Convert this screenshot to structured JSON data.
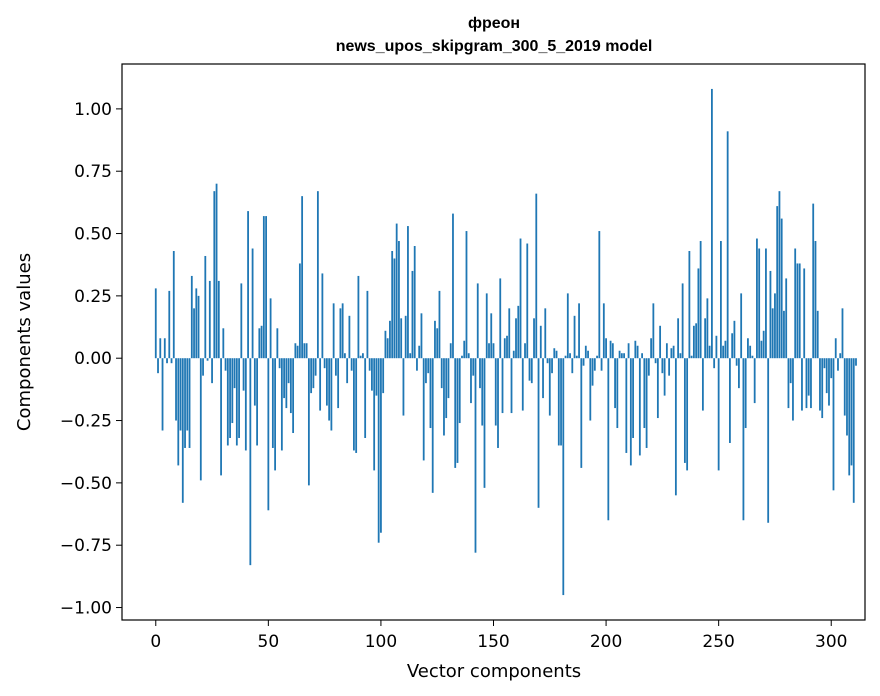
{
  "chart_data": {
    "type": "bar",
    "title": "фреон",
    "subtitle": "news_upos_skipgram_300_5_2019 model",
    "xlabel": "Vector components",
    "ylabel": "Components values",
    "xlim": [
      -15,
      315
    ],
    "ylim": [
      -1.05,
      1.18
    ],
    "xticks": [
      0,
      50,
      100,
      150,
      200,
      250,
      300
    ],
    "xtick_labels": [
      "0",
      "50",
      "100",
      "150",
      "200",
      "250",
      "300"
    ],
    "yticks": [
      -1.0,
      -0.75,
      -0.5,
      -0.25,
      0.0,
      0.25,
      0.5,
      0.75,
      1.0
    ],
    "ytick_labels": [
      "−1.00",
      "−0.75",
      "−0.50",
      "−0.25",
      "0.00",
      "0.25",
      "0.50",
      "0.75",
      "1.00"
    ],
    "bar_color": "#1f77b4",
    "values": [
      0.28,
      -0.06,
      0.08,
      -0.29,
      0.08,
      -0.02,
      0.27,
      -0.02,
      0.43,
      -0.25,
      -0.43,
      -0.29,
      -0.58,
      -0.36,
      -0.29,
      -0.36,
      0.33,
      0.2,
      0.28,
      0.25,
      -0.49,
      -0.07,
      0.41,
      -0.01,
      0.31,
      -0.1,
      0.67,
      0.7,
      0.31,
      -0.47,
      0.12,
      -0.05,
      -0.35,
      -0.32,
      -0.26,
      -0.12,
      -0.35,
      -0.32,
      0.3,
      -0.13,
      -0.37,
      0.59,
      -0.83,
      0.44,
      -0.19,
      -0.35,
      0.12,
      0.13,
      0.57,
      0.57,
      -0.61,
      0.24,
      -0.36,
      -0.45,
      0.12,
      -0.04,
      -0.37,
      -0.16,
      -0.2,
      -0.1,
      -0.22,
      -0.3,
      0.06,
      0.05,
      0.38,
      0.65,
      0.06,
      0.06,
      -0.51,
      -0.14,
      -0.12,
      -0.07,
      0.67,
      -0.21,
      0.34,
      -0.04,
      -0.19,
      -0.25,
      -0.29,
      0.22,
      -0.07,
      -0.2,
      0.2,
      0.22,
      0.02,
      -0.1,
      0.17,
      -0.05,
      -0.37,
      -0.38,
      0.33,
      0.01,
      0.02,
      -0.32,
      0.27,
      -0.05,
      -0.13,
      -0.45,
      -0.15,
      -0.74,
      -0.7,
      -0.14,
      0.11,
      0.08,
      0.15,
      0.43,
      0.4,
      0.54,
      0.47,
      0.16,
      -0.23,
      0.17,
      0.53,
      0.02,
      0.35,
      0.45,
      -0.05,
      0.05,
      0.18,
      -0.41,
      -0.1,
      -0.06,
      -0.28,
      -0.54,
      0.15,
      0.12,
      0.27,
      -0.12,
      -0.31,
      -0.24,
      -0.16,
      0.06,
      0.58,
      -0.44,
      -0.42,
      -0.26,
      0.01,
      0.07,
      0.51,
      0.02,
      -0.18,
      -0.07,
      -0.78,
      0.3,
      -0.12,
      -0.27,
      -0.52,
      0.26,
      0.06,
      0.18,
      0.06,
      -0.27,
      -0.36,
      0.32,
      -0.22,
      0.08,
      0.09,
      0.2,
      -0.22,
      0.03,
      0.16,
      0.21,
      0.48,
      -0.21,
      0.06,
      0.46,
      -0.09,
      -0.1,
      0.16,
      0.66,
      -0.6,
      0.13,
      -0.16,
      0.2,
      -0.02,
      -0.23,
      -0.06,
      0.04,
      0.03,
      -0.35,
      -0.35,
      -0.95,
      0.01,
      0.26,
      0.02,
      -0.06,
      0.17,
      0.01,
      0.22,
      -0.44,
      -0.03,
      0.05,
      0.03,
      -0.25,
      -0.11,
      -0.05,
      0.01,
      0.51,
      -0.05,
      0.22,
      0.08,
      -0.65,
      0.07,
      0.06,
      -0.2,
      -0.28,
      0.03,
      0.02,
      0.02,
      -0.38,
      0.06,
      -0.43,
      -0.32,
      0.07,
      0.05,
      -0.39,
      0.02,
      -0.28,
      -0.36,
      -0.07,
      0.08,
      0.22,
      -0.02,
      -0.24,
      0.13,
      -0.06,
      -0.15,
      0.06,
      -0.07,
      0.04,
      0.05,
      -0.55,
      0.16,
      0.02,
      0.3,
      -0.42,
      -0.45,
      0.43,
      0.01,
      0.13,
      0.14,
      0.36,
      0.47,
      -0.21,
      0.16,
      0.24,
      0.05,
      1.08,
      -0.04,
      0.09,
      -0.45,
      0.47,
      0.05,
      0.07,
      0.91,
      -0.34,
      0.1,
      0.15,
      -0.03,
      -0.12,
      0.26,
      -0.65,
      -0.28,
      0.08,
      0.05,
      0.01,
      -0.18,
      0.48,
      0.44,
      0.07,
      0.11,
      0.44,
      -0.66,
      0.35,
      0.2,
      0.26,
      0.61,
      0.67,
      0.56,
      0.19,
      0.32,
      -0.2,
      -0.1,
      -0.25,
      0.44,
      0.38,
      0.38,
      -0.21,
      0.36,
      -0.2,
      -0.15,
      -0.2,
      0.62,
      0.47,
      0.19,
      -0.21,
      -0.24,
      -0.04,
      -0.14,
      -0.19,
      -0.08,
      -0.53,
      0.08,
      -0.05,
      0.02,
      0.2,
      -0.23,
      -0.31,
      -0.47,
      -0.43,
      -0.58,
      -0.03
    ]
  }
}
